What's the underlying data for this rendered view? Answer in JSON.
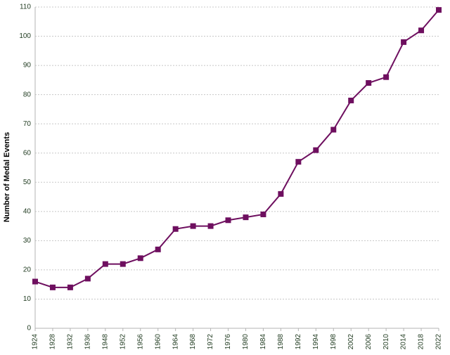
{
  "chart_data": {
    "type": "line",
    "y_label": "Number of Medal Events",
    "categories": [
      "1924",
      "1928",
      "1932",
      "1936",
      "1948",
      "1952",
      "1956",
      "1960",
      "1964",
      "1968",
      "1972",
      "1976",
      "1980",
      "1984",
      "1988",
      "1992",
      "1994",
      "1998",
      "2002",
      "2006",
      "2010",
      "2014",
      "2018",
      "2022"
    ],
    "values": [
      16,
      14,
      14,
      17,
      22,
      22,
      24,
      27,
      34,
      35,
      35,
      37,
      38,
      39,
      46,
      57,
      61,
      68,
      78,
      84,
      86,
      98,
      102,
      109
    ],
    "color": "#6e0f5f",
    "ylim": [
      0,
      110
    ],
    "yticks": [
      0,
      10,
      20,
      30,
      40,
      50,
      60,
      70,
      80,
      90,
      100,
      110
    ],
    "grid": true
  }
}
